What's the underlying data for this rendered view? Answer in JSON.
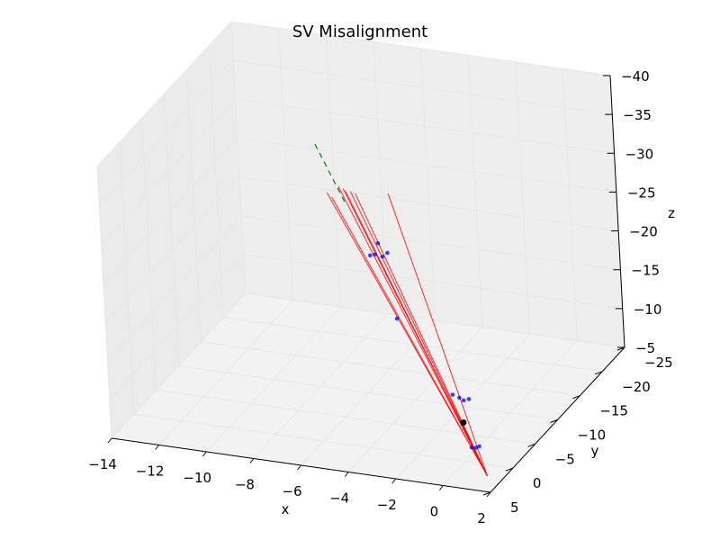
{
  "chart_data": {
    "type": "scatter3d",
    "title": "SV Misalignment",
    "xlabel": "x",
    "ylabel": "y",
    "zlabel": "z",
    "xlim": [
      -14,
      2
    ],
    "ylim": [
      5,
      -25
    ],
    "zlim": [
      -5,
      -40
    ],
    "x_ticks": [
      "−14",
      "−12",
      "−10",
      "−8",
      "−6",
      "−4",
      "−2",
      "0",
      "2"
    ],
    "y_ticks": [
      "5",
      "0",
      "−5",
      "−10",
      "−15",
      "−20",
      "−25"
    ],
    "z_ticks": [
      "−5",
      "−10",
      "−15",
      "−20",
      "−25",
      "−30",
      "−35",
      "−40"
    ],
    "grid": true,
    "colors": {
      "tracks": "#ff0000",
      "hits": "#0000ff",
      "vertex": "#000000",
      "guide": "#008000",
      "pane": "#f2f2f2",
      "grid": "#e6e6e6"
    },
    "vertex_marker": {
      "x": 0,
      "y": 0,
      "z": -10
    },
    "guide_line": {
      "x": [
        -7.5,
        -6.2
      ],
      "y": [
        -9,
        -8.5
      ],
      "z": [
        -37,
        -30
      ]
    },
    "hit_points": [
      {
        "x": -5.0,
        "y": -7.0,
        "z": -25
      },
      {
        "x": -4.8,
        "y": -7.0,
        "z": -25.2
      },
      {
        "x": -4.5,
        "y": -7.1,
        "z": -25
      },
      {
        "x": -4.3,
        "y": -7.2,
        "z": -25.5
      },
      {
        "x": -4.7,
        "y": -7.3,
        "z": -26.5
      },
      {
        "x": -3.8,
        "y": -6.0,
        "z": -18
      },
      {
        "x": -0.8,
        "y": -2.0,
        "z": -12
      },
      {
        "x": -0.5,
        "y": -1.9,
        "z": -11.8
      },
      {
        "x": -0.3,
        "y": -1.8,
        "z": -11.6
      },
      {
        "x": -0.1,
        "y": -1.9,
        "z": -11.8
      },
      {
        "x": 0.6,
        "y": 1.5,
        "z": -8
      },
      {
        "x": 0.8,
        "y": 1.6,
        "z": -8.1
      },
      {
        "x": 0.9,
        "y": 1.4,
        "z": -8.2
      }
    ],
    "tracks": [
      {
        "start": {
          "x": -6.3,
          "y": -7.5,
          "z": -33
        },
        "end": {
          "x": 1.6,
          "y": 3.5,
          "z": -6
        }
      },
      {
        "start": {
          "x": -6.0,
          "y": -7.5,
          "z": -32.5
        },
        "end": {
          "x": 1.6,
          "y": 3.5,
          "z": -6
        }
      },
      {
        "start": {
          "x": -6.1,
          "y": -7.5,
          "z": -32.8
        },
        "end": {
          "x": 1.6,
          "y": 3.5,
          "z": -6
        }
      },
      {
        "start": {
          "x": -5.8,
          "y": -7.5,
          "z": -32.6
        },
        "end": {
          "x": 1.6,
          "y": 3.5,
          "z": -6
        }
      },
      {
        "start": {
          "x": -5.6,
          "y": -7.5,
          "z": -32.4
        },
        "end": {
          "x": 1.6,
          "y": 3.5,
          "z": -6
        }
      },
      {
        "start": {
          "x": -6.8,
          "y": -7.5,
          "z": -32
        },
        "end": {
          "x": 1.6,
          "y": 3.5,
          "z": -6
        }
      },
      {
        "start": {
          "x": -6.6,
          "y": -7.5,
          "z": -31.5
        },
        "end": {
          "x": 1.6,
          "y": 3.5,
          "z": -6
        }
      },
      {
        "start": {
          "x": -4.2,
          "y": -7.5,
          "z": -33
        },
        "end": {
          "x": 1.6,
          "y": 3.5,
          "z": -6
        }
      }
    ]
  }
}
